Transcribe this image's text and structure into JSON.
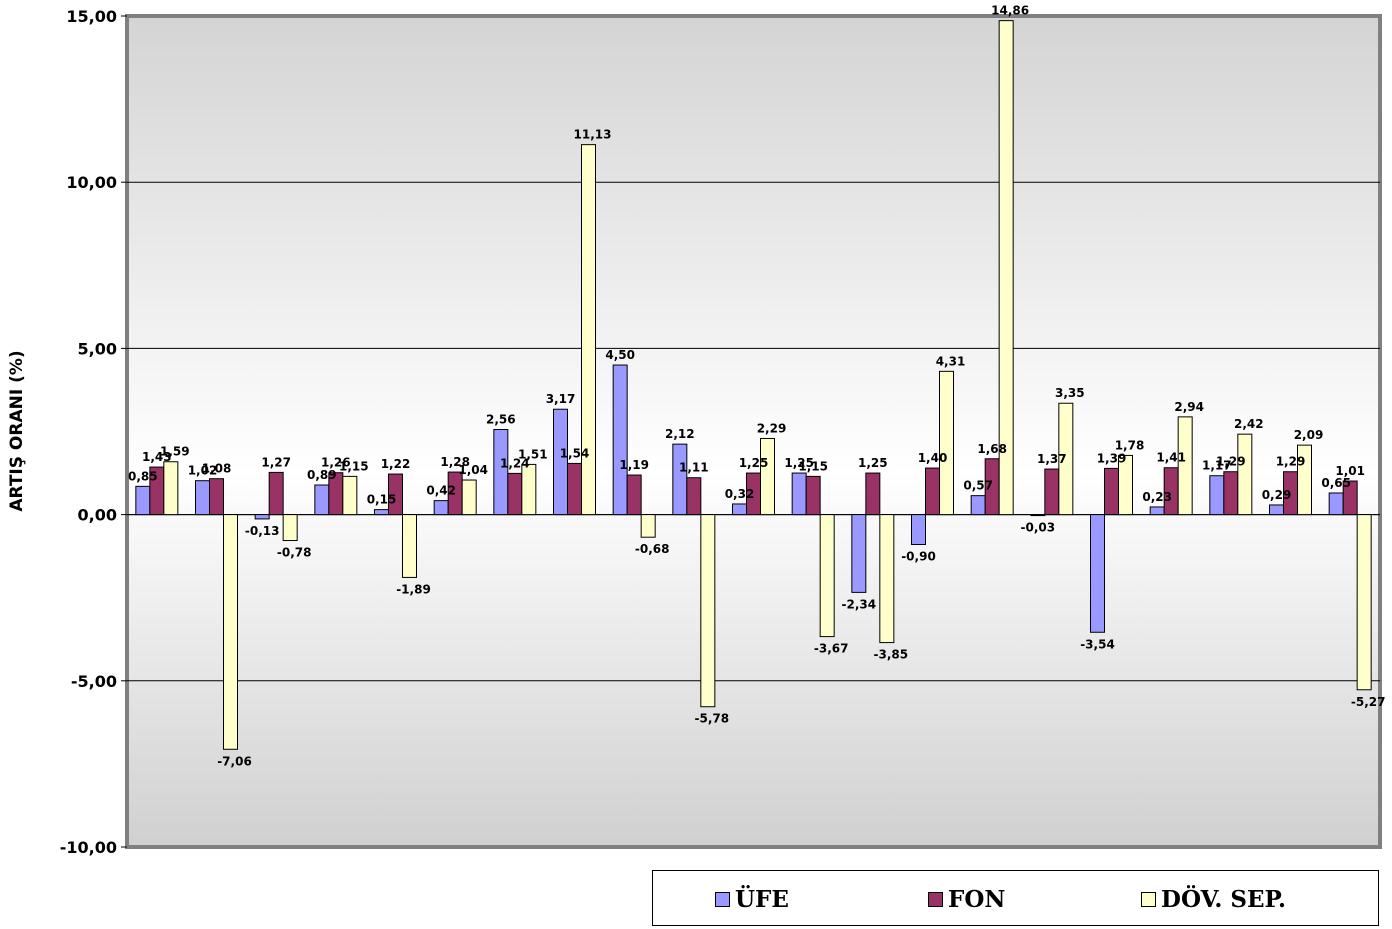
{
  "chart_data": {
    "type": "bar",
    "ylabel": "ARTIŞ ORANI (%)",
    "ylim": [
      -10,
      15
    ],
    "yticks": [
      "-10,00",
      "-5,00",
      "0,00",
      "5,00",
      "10,00",
      "15,00"
    ],
    "ytick_values": [
      -10,
      -5,
      0,
      5,
      10,
      15
    ],
    "grid": true,
    "legend_placement": "bottom-right",
    "group_count": 21,
    "series": [
      {
        "name": "ÜFE",
        "color": "#9999FF",
        "values": [
          0.85,
          1.02,
          -0.13,
          0.89,
          0.15,
          0.42,
          2.56,
          3.17,
          4.5,
          2.12,
          0.32,
          1.25,
          -2.34,
          -0.9,
          0.57,
          -0.03,
          -3.54,
          0.23,
          1.17,
          0.29,
          0.65
        ],
        "labels": [
          "0,85",
          "1,02",
          "-0,13",
          "0,89",
          "0,15",
          "0,42",
          "2,56",
          "3,17",
          "4,50",
          "2,12",
          "0,32",
          "1,25",
          "-2,34",
          "-0,90",
          "0,57",
          "-0,03",
          "-3,54",
          "0,23",
          "1,17",
          "0,29",
          "0,65"
        ]
      },
      {
        "name": "FON",
        "color": "#993366",
        "values": [
          1.43,
          1.08,
          1.27,
          1.26,
          1.22,
          1.28,
          1.24,
          1.54,
          1.19,
          1.11,
          1.25,
          1.15,
          1.25,
          1.4,
          1.68,
          1.37,
          1.39,
          1.41,
          1.29,
          1.29,
          1.01
        ],
        "labels": [
          "1,43",
          "1,08",
          "1,27",
          "1,26",
          "1,22",
          "1,28",
          "1,24",
          "1,54",
          "1,19",
          "1,11",
          "1,25",
          "1,15",
          "1,25",
          "1,40",
          "1,68",
          "1,37",
          "1,39",
          "1,41",
          "1,29",
          "1,29",
          "1,01"
        ]
      },
      {
        "name": "DÖV. SEP.",
        "color": "#FFFFCC",
        "values": [
          1.59,
          -7.06,
          -0.78,
          1.15,
          -1.89,
          1.04,
          1.51,
          11.13,
          -0.68,
          -5.78,
          2.29,
          -3.67,
          -3.85,
          4.31,
          14.86,
          3.35,
          1.78,
          2.94,
          2.42,
          2.09,
          -5.27
        ],
        "labels": [
          "1,59",
          "-7,06",
          "-0,78",
          "1,15",
          "-1,89",
          "1,04",
          "1,51",
          "11,13",
          "-0,68",
          "-5,78",
          "2,29",
          "-3,67",
          "-3,85",
          "4,31",
          "14,86",
          "3,35",
          "1,78",
          "2,94",
          "2,42",
          "2,09",
          "-5,27"
        ]
      }
    ]
  },
  "legend": {
    "items": [
      {
        "label": "ÜFE",
        "color": "#9999FF"
      },
      {
        "label": "FON",
        "color": "#993366"
      },
      {
        "label": "DÖV. SEP.",
        "color": "#FFFFCC"
      }
    ]
  }
}
